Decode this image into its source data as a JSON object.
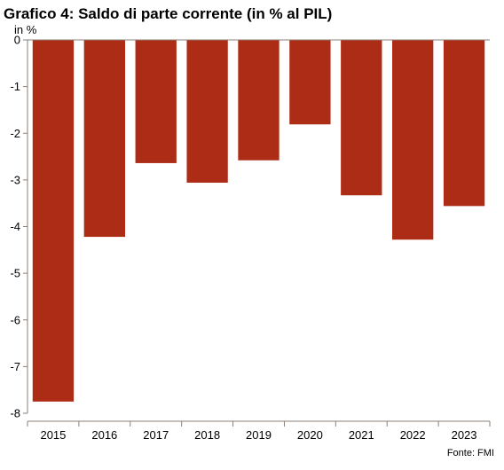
{
  "title": "Grafico 4: Saldo di parte corrente (in % al PIL)",
  "unit_label": "in %",
  "source": "Fonte: FMI",
  "colors": {
    "bar": "#ad2c16",
    "axis": "#8a7f76"
  },
  "chart_data": {
    "type": "bar",
    "title": "Grafico 4: Saldo di parte corrente (in % al PIL)",
    "ylabel": "in %",
    "xlabel": "",
    "categories": [
      "2015",
      "2016",
      "2017",
      "2018",
      "2019",
      "2020",
      "2021",
      "2022",
      "2023"
    ],
    "values": [
      -7.75,
      -4.22,
      -2.64,
      -3.06,
      -2.58,
      -1.81,
      -3.33,
      -4.28,
      -3.56
    ],
    "ylim": [
      -8,
      0
    ],
    "yticks": [
      0,
      -1,
      -2,
      -3,
      -4,
      -5,
      -6,
      -7,
      -8
    ],
    "grid": false,
    "legend": "none"
  }
}
